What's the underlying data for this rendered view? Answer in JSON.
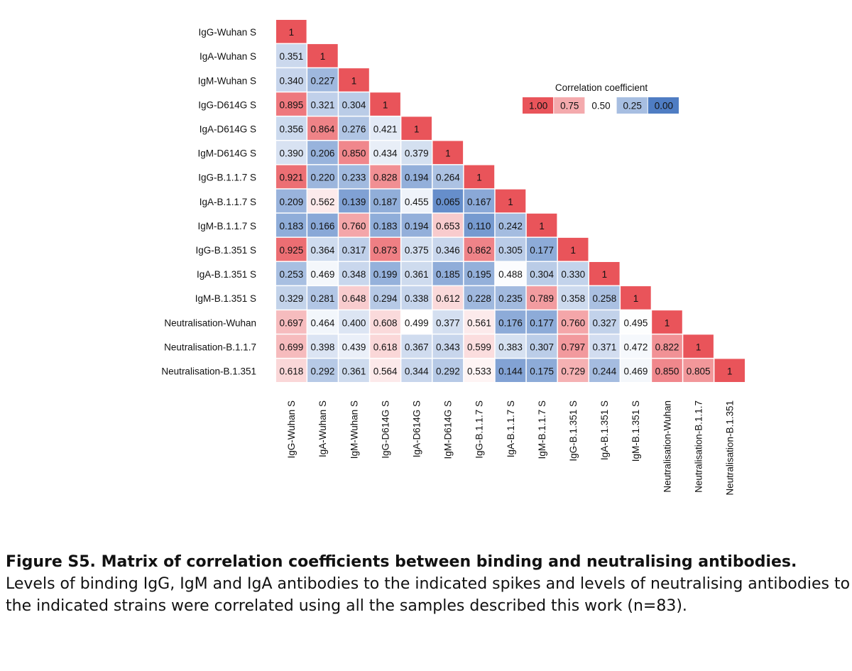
{
  "chart_data": {
    "type": "heatmap",
    "title": "",
    "labels": [
      "IgG-Wuhan S",
      "IgA-Wuhan S",
      "IgM-Wuhan S",
      "IgG-D614G S",
      "IgA-D614G S",
      "IgM-D614G S",
      "IgG-B.1.1.7 S",
      "IgA-B.1.1.7 S",
      "IgM-B.1.1.7 S",
      "IgG-B.1.351 S",
      "IgA-B.1.351 S",
      "IgM-B.1.351 S",
      "Neutralisation-Wuhan",
      "Neutralisation-B.1.1.7",
      "Neutralisation-B.1.351"
    ],
    "matrix": [
      [
        1
      ],
      [
        0.351,
        1
      ],
      [
        0.34,
        0.227,
        1
      ],
      [
        0.895,
        0.321,
        0.304,
        1
      ],
      [
        0.356,
        0.864,
        0.276,
        0.421,
        1
      ],
      [
        0.39,
        0.206,
        0.85,
        0.434,
        0.379,
        1
      ],
      [
        0.921,
        0.22,
        0.233,
        0.828,
        0.194,
        0.264,
        1
      ],
      [
        0.209,
        0.562,
        0.139,
        0.187,
        0.455,
        0.065,
        0.167,
        1
      ],
      [
        0.183,
        0.166,
        0.76,
        0.183,
        0.194,
        0.653,
        0.11,
        0.242,
        1
      ],
      [
        0.925,
        0.364,
        0.317,
        0.873,
        0.375,
        0.346,
        0.862,
        0.305,
        0.177,
        1
      ],
      [
        0.253,
        0.469,
        0.348,
        0.199,
        0.361,
        0.185,
        0.195,
        0.488,
        0.304,
        0.33,
        1
      ],
      [
        0.329,
        0.281,
        0.648,
        0.294,
        0.338,
        0.612,
        0.228,
        0.235,
        0.789,
        0.358,
        0.258,
        1
      ],
      [
        0.697,
        0.464,
        0.4,
        0.608,
        0.499,
        0.377,
        0.561,
        0.176,
        0.177,
        0.76,
        0.327,
        0.495,
        1
      ],
      [
        0.699,
        0.398,
        0.439,
        0.618,
        0.367,
        0.343,
        0.599,
        0.383,
        0.307,
        0.797,
        0.371,
        0.472,
        0.822,
        1
      ],
      [
        0.618,
        0.292,
        0.361,
        0.564,
        0.344,
        0.292,
        0.533,
        0.144,
        0.175,
        0.729,
        0.244,
        0.469,
        0.85,
        0.805,
        1
      ]
    ],
    "legend": {
      "title": "Correlation coefficient",
      "ticks": [
        "1.00",
        "0.75",
        "0.50",
        "0.25",
        "0.00"
      ],
      "placement": "top-right"
    },
    "colors": {
      "high": "#e9545a",
      "mid": "#ffffff",
      "low": "#4f7dc3"
    }
  },
  "caption": {
    "bold": "Figure S5. Matrix of correlation coefficients between binding and neutralising antibodies.",
    "text": " Levels of binding IgG, IgM and IgA antibodies to the indicated spikes and levels of neutralising antibodies to the indicated strains were correlated using all the samples described this work (n=83)."
  }
}
